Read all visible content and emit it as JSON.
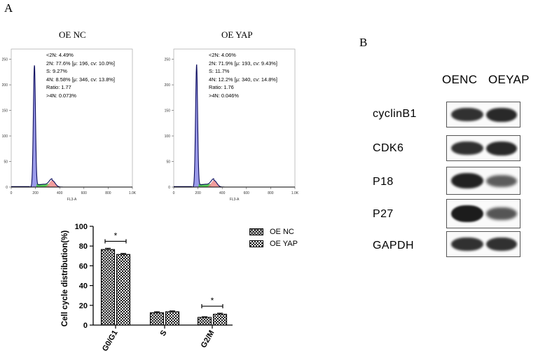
{
  "panel_a_label": "A",
  "panel_b_label": "B",
  "histograms": [
    {
      "title": "OE NC",
      "stats": [
        "<2N: 4.49%",
        "2N: 77.6%   [μ: 196, cv: 10.0%]",
        "S: 9.27%",
        "4N: 8.58%   [μ: 346, cv: 13.8%]",
        "Ratio: 1.77",
        ">4N: 0.073%"
      ],
      "y_ticks": [
        "0",
        "50",
        "100",
        "150",
        "200",
        "250"
      ],
      "x_ticks": [
        "0",
        "200",
        "400",
        "600",
        "800",
        "1.0K"
      ],
      "xlabel": "FL3-A",
      "g1_peak": 196,
      "g2_peak": 346
    },
    {
      "title": "OE YAP",
      "stats": [
        "<2N: 4.06%",
        "2N: 71.9%   [μ: 193, cv: 9.43%]",
        "S: 11.7%",
        "4N: 12.2%   [μ: 340, cv: 14.8%]",
        "Ratio: 1.76",
        ">4N: 0.046%"
      ],
      "y_ticks": [
        "0",
        "50",
        "100",
        "150",
        "200",
        "250"
      ],
      "x_ticks": [
        "0",
        "200",
        "400",
        "600",
        "800",
        "1.0K"
      ],
      "xlabel": "FL3-A",
      "g1_peak": 193,
      "g2_peak": 340
    }
  ],
  "chart_data": {
    "type": "bar",
    "categories": [
      "G0/G1",
      "S",
      "G2/M"
    ],
    "series": [
      {
        "name": "OE NC",
        "values": [
          76.5,
          12.5,
          7.8
        ],
        "errors": [
          1.2,
          1.0,
          0.6
        ]
      },
      {
        "name": "OE YAP",
        "values": [
          71.5,
          13.5,
          11.0
        ],
        "errors": [
          1.0,
          0.8,
          1.0
        ]
      }
    ],
    "title": "",
    "xlabel": "",
    "ylabel": "Cell cycle distribution(%)",
    "ylim": [
      0,
      100
    ],
    "y_ticks": [
      "0",
      "20",
      "40",
      "60",
      "80",
      "100"
    ],
    "significance": [
      {
        "category": "G0/G1",
        "label": "*"
      },
      {
        "category": "G2/M",
        "label": "*"
      }
    ]
  },
  "western_blot": {
    "columns": [
      "OENC",
      "OEYAP"
    ],
    "rows": [
      {
        "label": "cyclinB1",
        "intensity": [
          0.85,
          0.9
        ]
      },
      {
        "label": "CDK6",
        "intensity": [
          0.85,
          0.9
        ]
      },
      {
        "label": "P18",
        "intensity": [
          0.95,
          0.55
        ]
      },
      {
        "label": "P27",
        "intensity": [
          1.0,
          0.6
        ]
      },
      {
        "label": "GAPDH",
        "intensity": [
          0.85,
          0.85
        ]
      }
    ],
    "band_color": "#1c1c1c"
  },
  "colors": {
    "g1_fill": "#8a8ae6",
    "s_fill": "#39c43b",
    "g2_fill": "#ee8c8c",
    "curve": "#0d0d5e",
    "outline": "#000000"
  }
}
